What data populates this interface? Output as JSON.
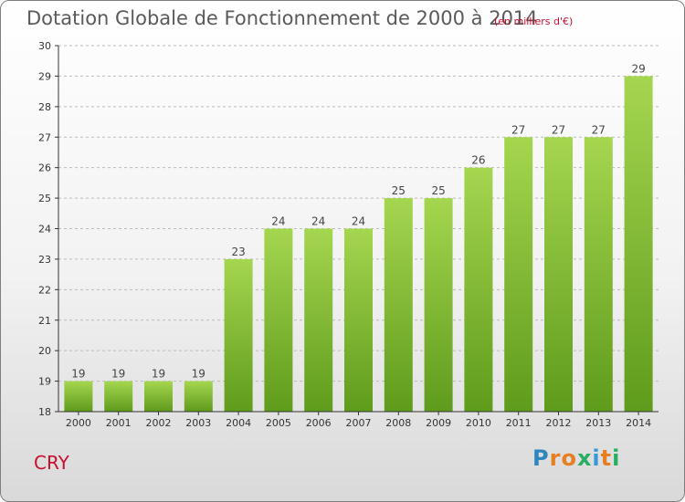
{
  "header": {
    "title": "Dotation Globale de Fonctionnement de 2000 à 2014",
    "subtitle": "(en milliers d'€)"
  },
  "place": "CRY",
  "logo": {
    "letters": [
      "P",
      "r",
      "o",
      "x",
      "i",
      "t",
      "i"
    ],
    "colors": [
      "#2e86c1",
      "#e67e22",
      "#e67e22",
      "#27ae60",
      "#3498db",
      "#e67e22",
      "#27ae60"
    ]
  },
  "colors": {
    "bar_top": "#a5d64f",
    "bar_bottom": "#5f9b1c",
    "grid": "#bbbbbb",
    "axis": "#333333"
  },
  "chart_data": {
    "type": "bar",
    "title": "Dotation Globale de Fonctionnement de 2000 à 2014",
    "subtitle": "(en milliers d'€)",
    "categories": [
      "2000",
      "2001",
      "2002",
      "2003",
      "2004",
      "2005",
      "2006",
      "2007",
      "2008",
      "2009",
      "2010",
      "2011",
      "2012",
      "2013",
      "2014"
    ],
    "values": [
      19,
      19,
      19,
      19,
      23,
      24,
      24,
      24,
      25,
      25,
      26,
      27,
      27,
      27,
      29
    ],
    "ylim": [
      18,
      30
    ],
    "yticks": [
      18,
      19,
      20,
      21,
      22,
      23,
      24,
      25,
      26,
      27,
      28,
      29,
      30
    ],
    "grid": true,
    "grid_style": "dashed-horizontal"
  }
}
